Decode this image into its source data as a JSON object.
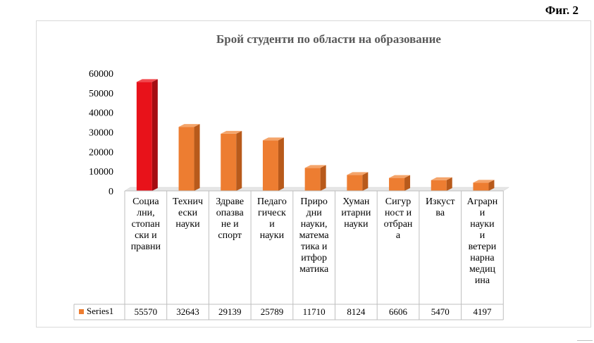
{
  "figure_label": "Фиг. 2",
  "chart_data": {
    "type": "bar",
    "title": "Брой студенти по области на образование",
    "categories": [
      "Социални, стопански и правни",
      "Технически науки",
      "Здравеопазване и спорт",
      "Педагогически науки",
      "Природни науки, математика и итформатика",
      "Хуманитарни науки",
      "Сигурност и отбрана",
      "Изкуства",
      "Аграрни науки и ветеринарна медицина"
    ],
    "category_lines": [
      [
        "Социа",
        "лни,",
        "стопан",
        "ски и",
        "правни"
      ],
      [
        "Технич",
        "ески",
        "науки"
      ],
      [
        "Здраве",
        "опазва",
        "не и",
        "спорт"
      ],
      [
        "Педаго",
        "гическ",
        "и",
        "науки"
      ],
      [
        "Приро",
        "дни",
        "науки,",
        "матема",
        "тика и",
        "итфор",
        "матика"
      ],
      [
        "Хуман",
        "итарни",
        "науки"
      ],
      [
        "Сигур",
        "ност и",
        "отбран",
        "а"
      ],
      [
        "Изкуст",
        "ва"
      ],
      [
        "Аграрн",
        "и",
        "науки",
        "и",
        "ветери",
        "нарна",
        "медиц",
        "ина"
      ]
    ],
    "series": [
      {
        "name": "Series1",
        "values": [
          55570,
          32643,
          29139,
          25789,
          11710,
          8124,
          6606,
          5470,
          4197
        ],
        "value_labels": [
          "55570",
          "32643",
          "29139",
          "25789",
          "11710",
          "8124",
          "6606",
          "5470",
          "4197"
        ]
      }
    ],
    "y_ticks": [
      "0",
      "10000",
      "20000",
      "30000",
      "40000",
      "50000",
      "60000"
    ],
    "ylim": [
      0,
      60000
    ],
    "highlight_index": 0,
    "colors": {
      "bar": "#ed7d31",
      "bar_dark": "#b85a1b",
      "bar_top": "#f4a46a",
      "highlight": "#e8121a",
      "highlight_dark": "#a50d12",
      "highlight_top": "#f24a4f"
    },
    "legend_placement": "bottom-left (data table)"
  }
}
